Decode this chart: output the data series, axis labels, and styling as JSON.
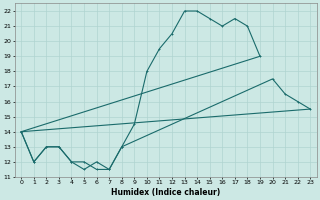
{
  "xlabel": "Humidex (Indice chaleur)",
  "xlim": [
    -0.5,
    23.5
  ],
  "ylim": [
    11,
    22.5
  ],
  "xticks": [
    0,
    1,
    2,
    3,
    4,
    5,
    6,
    7,
    8,
    9,
    10,
    11,
    12,
    13,
    14,
    15,
    16,
    17,
    18,
    19,
    20,
    21,
    22,
    23
  ],
  "yticks": [
    11,
    12,
    13,
    14,
    15,
    16,
    17,
    18,
    19,
    20,
    21,
    22
  ],
  "bg_color": "#cce8e4",
  "grid_color": "#b0d4d0",
  "line_color": "#1a6b6b",
  "line1_x": [
    0,
    1,
    2,
    3,
    4,
    5,
    6,
    7,
    8,
    9,
    10,
    11,
    12,
    13,
    14,
    15,
    16,
    17,
    18,
    19
  ],
  "line1_y": [
    14,
    12,
    13,
    13,
    12,
    11.5,
    12,
    11.5,
    13,
    14.5,
    18,
    19.5,
    20.5,
    22,
    22,
    21.5,
    21,
    21.5,
    21,
    19
  ],
  "line2_x": [
    0,
    1,
    2,
    3,
    4,
    5,
    6,
    7,
    8,
    20,
    21,
    22,
    23
  ],
  "line2_y": [
    14,
    12,
    13,
    13,
    12,
    12,
    11.5,
    11.5,
    13,
    17.5,
    16.5,
    16,
    15.5
  ],
  "line3_x": [
    0,
    23
  ],
  "line3_y": [
    14,
    15.5
  ],
  "line4_x": [
    0,
    19
  ],
  "line4_y": [
    14,
    19
  ]
}
